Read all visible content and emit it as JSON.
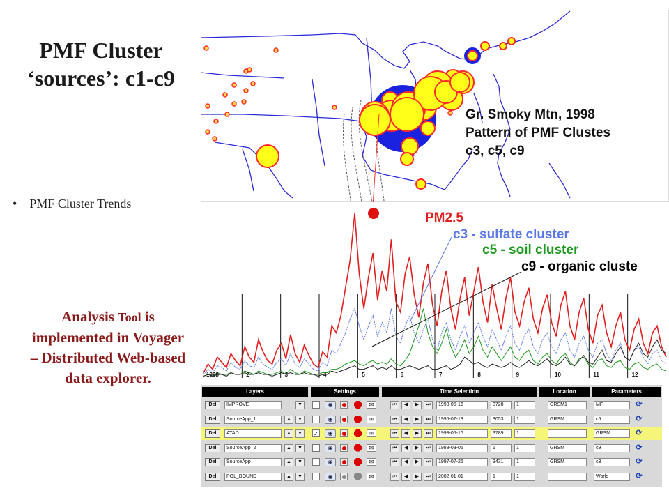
{
  "title_line1": "PMF Cluster",
  "title_line2": "‘sources’: c1-c9",
  "bullet": "PMF Cluster Trends",
  "analysis": {
    "part1": "Analysis ",
    "tool": "Tool",
    "part2": " is implemented in Voyager – Distributed Web-based data explorer."
  },
  "map_caption": {
    "line1": "Gr. Smoky Mtn, 1998",
    "line2": "Pattern of PMF Clustes",
    "line3": "c3, c5, c9"
  },
  "legend": [
    {
      "label": "PM2.5",
      "color": "#e02020"
    },
    {
      "label": "c3 - sulfate cluster",
      "color": "#5a78e6"
    },
    {
      "label": "c5 - soil cluster",
      "color": "#1e9a1e"
    },
    {
      "label": "c9 - organic cluste",
      "color": "#000000"
    }
  ],
  "chart_data": {
    "type": "line",
    "x_ticks": [
      "1998",
      "2",
      "3",
      "4",
      "5",
      "6",
      "7",
      "8",
      "9",
      "10",
      "11",
      "12"
    ],
    "series": [
      {
        "name": "PM2.5",
        "color": "#e02020",
        "values": [
          3,
          8,
          5,
          12,
          9,
          6,
          14,
          10,
          7,
          18,
          12,
          9,
          22,
          15,
          10,
          8,
          16,
          20,
          11,
          25,
          14,
          9,
          19,
          13,
          8,
          6,
          15,
          12,
          30,
          26,
          36,
          52,
          68,
          95,
          60,
          40,
          58,
          72,
          45,
          62,
          50,
          80,
          44,
          38,
          60,
          70,
          48,
          35,
          55,
          66,
          42,
          30,
          50,
          62,
          40,
          28,
          46,
          58,
          36,
          50,
          64,
          44,
          32,
          54,
          40,
          28,
          46,
          58,
          38,
          30,
          44,
          52,
          34,
          26,
          40,
          48,
          32,
          24,
          42,
          50,
          30,
          22,
          38,
          46,
          28,
          20,
          36,
          42,
          26,
          18,
          30,
          38,
          22,
          16,
          28,
          34,
          20,
          14,
          26,
          30,
          18,
          12
        ]
      },
      {
        "name": "c3 - sulfate cluster",
        "color": "#5a78e6",
        "values": [
          2,
          5,
          3,
          7,
          6,
          4,
          9,
          6,
          5,
          10,
          7,
          6,
          12,
          8,
          6,
          5,
          9,
          11,
          7,
          14,
          8,
          6,
          11,
          8,
          5,
          4,
          9,
          7,
          16,
          14,
          20,
          26,
          34,
          40,
          30,
          22,
          30,
          36,
          24,
          32,
          26,
          40,
          24,
          20,
          30,
          36,
          26,
          20,
          28,
          34,
          22,
          16,
          26,
          32,
          22,
          16,
          24,
          30,
          20,
          26,
          32,
          24,
          18,
          28,
          22,
          16,
          24,
          30,
          20,
          16,
          24,
          28,
          18,
          14,
          22,
          26,
          18,
          14,
          22,
          26,
          16,
          12,
          20,
          24,
          16,
          12,
          20,
          22,
          14,
          10,
          16,
          20,
          12,
          10,
          16,
          18,
          12,
          8,
          14,
          16,
          10,
          8
        ]
      },
      {
        "name": "c5 - soil cluster",
        "color": "#1e9a1e",
        "values": [
          1,
          2,
          1,
          3,
          2,
          2,
          3,
          2,
          2,
          4,
          3,
          2,
          4,
          3,
          2,
          2,
          3,
          4,
          2,
          5,
          3,
          2,
          4,
          3,
          2,
          2,
          3,
          3,
          5,
          5,
          6,
          8,
          9,
          10,
          8,
          7,
          9,
          10,
          8,
          9,
          8,
          11,
          8,
          7,
          10,
          14,
          22,
          30,
          40,
          26,
          18,
          14,
          20,
          28,
          18,
          12,
          16,
          22,
          14,
          18,
          24,
          16,
          12,
          18,
          14,
          10,
          14,
          18,
          12,
          10,
          14,
          16,
          10,
          8,
          12,
          14,
          10,
          8,
          12,
          14,
          9,
          7,
          11,
          12,
          8,
          6,
          10,
          11,
          7,
          6,
          9,
          10,
          6,
          5,
          8,
          9,
          6,
          5,
          7,
          8,
          5,
          4
        ]
      },
      {
        "name": "c9 - organic cluste",
        "color": "#222222",
        "values": [
          1,
          2,
          1,
          2,
          2,
          1,
          3,
          2,
          2,
          3,
          2,
          2,
          3,
          2,
          2,
          1,
          2,
          3,
          2,
          3,
          2,
          2,
          3,
          2,
          2,
          1,
          2,
          2,
          4,
          3,
          4,
          5,
          6,
          7,
          5,
          5,
          6,
          7,
          5,
          6,
          5,
          7,
          5,
          5,
          6,
          7,
          6,
          5,
          6,
          7,
          5,
          5,
          6,
          7,
          5,
          6,
          8,
          12,
          10,
          8,
          9,
          7,
          6,
          8,
          7,
          6,
          7,
          9,
          7,
          6,
          8,
          10,
          8,
          7,
          9,
          11,
          8,
          7,
          9,
          12,
          8,
          7,
          10,
          13,
          9,
          8,
          12,
          16,
          10,
          9,
          14,
          18,
          12,
          10,
          16,
          20,
          14,
          12,
          18,
          22,
          16,
          14
        ]
      }
    ]
  },
  "panel": {
    "headers": [
      "Layers",
      "Settings",
      "Time Selection",
      "Location",
      "Parameters"
    ],
    "del_label": "Del",
    "rows": [
      {
        "layer": "IMPROVE",
        "date": "1998-05-16",
        "count": "3728",
        "step": "1",
        "location": "GRSM1",
        "param": "MF",
        "checked": false,
        "highlight": false,
        "grey": false
      },
      {
        "layer": "SourceApp_1",
        "date": "1996-07-13",
        "count": "3053",
        "step": "1",
        "location": "GRSM",
        "param": "c5",
        "checked": false,
        "highlight": false,
        "grey": false
      },
      {
        "layer": "ATAD",
        "date": "1998-05-16",
        "count": "3789",
        "step": "1",
        "location": "",
        "param": "GRSM",
        "checked": true,
        "highlight": true,
        "grey": false
      },
      {
        "layer": "SourceApp_2",
        "date": "1988-03-05",
        "count": "1",
        "step": "1",
        "location": "GRSM",
        "param": "c9",
        "checked": false,
        "highlight": false,
        "grey": false
      },
      {
        "layer": "SourceApp",
        "date": "1997-07-26",
        "count": "3431",
        "step": "1",
        "location": "GRSM",
        "param": "c3",
        "checked": false,
        "highlight": false,
        "grey": false
      },
      {
        "layer": "POL_BOUND",
        "date": "2002-01-01",
        "count": "1",
        "step": "1",
        "location": "",
        "param": "World",
        "checked": false,
        "highlight": false,
        "grey": true
      }
    ]
  }
}
